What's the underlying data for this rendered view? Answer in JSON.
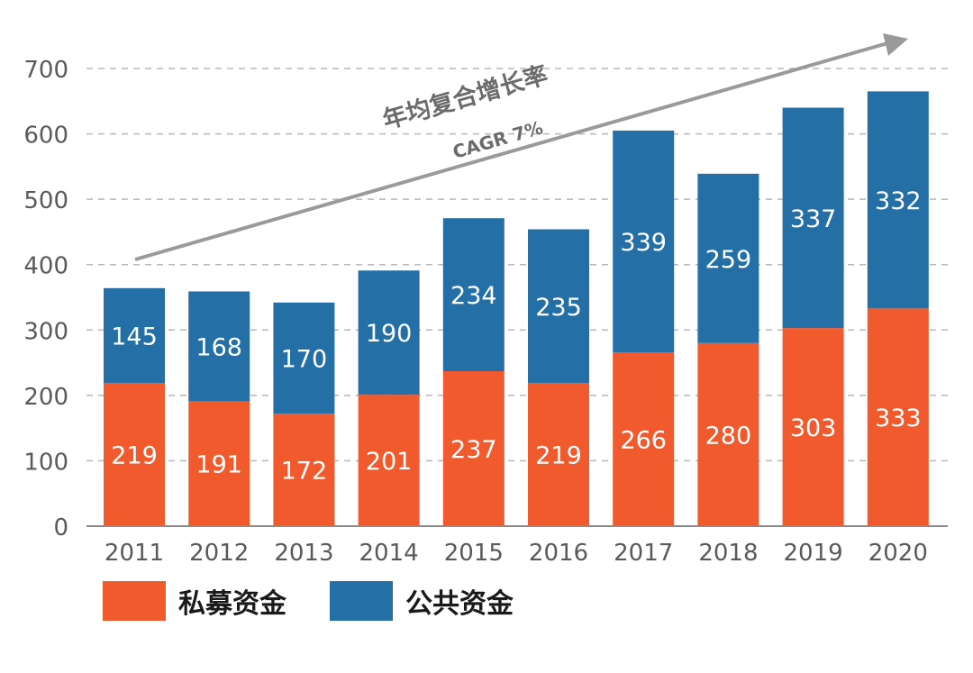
{
  "chart_data": {
    "type": "bar",
    "stacked": true,
    "categories": [
      "2011",
      "2012",
      "2013",
      "2014",
      "2015",
      "2016",
      "2017",
      "2018",
      "2019",
      "2020"
    ],
    "series": [
      {
        "name": "私募资金",
        "color": "#f05a2d",
        "values": [
          219,
          191,
          172,
          201,
          237,
          219,
          266,
          280,
          303,
          333
        ]
      },
      {
        "name": "公共资金",
        "color": "#2470a6",
        "values": [
          145,
          168,
          170,
          190,
          234,
          235,
          339,
          259,
          337,
          332
        ]
      }
    ],
    "yticks": [
      "0",
      "100",
      "200",
      "300",
      "400",
      "500",
      "600",
      "700"
    ],
    "ylim": [
      0,
      700
    ],
    "grid": true,
    "annotation": {
      "title": "年均复合增长率",
      "subtitle": "CAGR 7%"
    },
    "legend_position": "bottom-left",
    "title": "",
    "xlabel": "",
    "ylabel": ""
  }
}
